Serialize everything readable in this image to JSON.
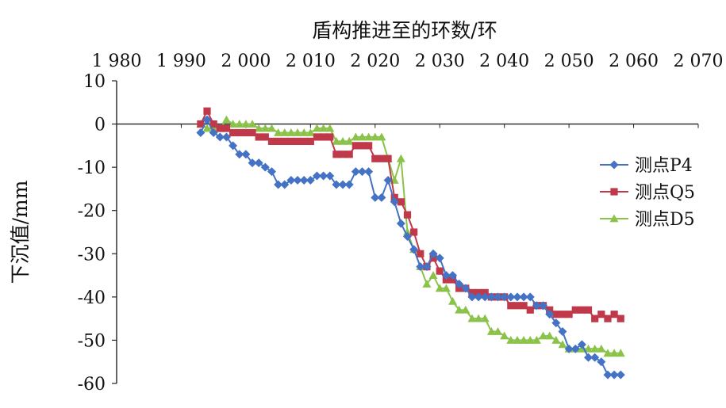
{
  "chart_data": {
    "type": "line",
    "title": "",
    "xlabel": "盾构推进至的环数/环",
    "ylabel": "下沉值/mm",
    "x_axis_position": "top",
    "xlim": [
      1980,
      2070
    ],
    "ylim": [
      -60,
      10
    ],
    "x_ticks": [
      1980,
      1990,
      2000,
      2010,
      2020,
      2030,
      2040,
      2050,
      2060,
      2070
    ],
    "x_tick_labels": [
      "1 980",
      "1 990",
      "2 000",
      "2 010",
      "2 020",
      "2 030",
      "2 040",
      "2 050",
      "2 060",
      "2 070"
    ],
    "y_ticks": [
      10,
      0,
      -10,
      -20,
      -30,
      -40,
      -50,
      -60
    ],
    "y_tick_labels": [
      "10",
      "0",
      "-10",
      "-20",
      "-30",
      "-40",
      "-50",
      "-60"
    ],
    "grid": false,
    "legend_position": "right",
    "series": [
      {
        "name": "测点P4",
        "color": "#4472C4",
        "marker": "diamond",
        "x": [
          1993,
          1994,
          1995,
          1996,
          1997,
          1998,
          1999,
          2000,
          2001,
          2002,
          2003,
          2004,
          2005,
          2006,
          2007,
          2008,
          2009,
          2010,
          2011,
          2012,
          2013,
          2014,
          2015,
          2016,
          2017,
          2018,
          2019,
          2020,
          2021,
          2022,
          2023,
          2024,
          2025,
          2026,
          2027,
          2028,
          2029,
          2030,
          2031,
          2032,
          2033,
          2034,
          2035,
          2036,
          2037,
          2038,
          2039,
          2040,
          2041,
          2042,
          2043,
          2044,
          2045,
          2046,
          2047,
          2048,
          2049,
          2050,
          2051,
          2052,
          2053,
          2054,
          2055,
          2056,
          2057,
          2058
        ],
        "values": [
          -2,
          1,
          -2,
          -3,
          -3,
          -5,
          -7,
          -7,
          -9,
          -9,
          -10,
          -11,
          -14,
          -14,
          -13,
          -13,
          -13,
          -13,
          -12,
          -12,
          -12,
          -14,
          -14,
          -14,
          -11,
          -11,
          -11,
          -17,
          -17,
          -13,
          -18,
          -23,
          -26,
          -29,
          -33,
          -33,
          -30,
          -31,
          -35,
          -35,
          -37,
          -38,
          -40,
          -40,
          -40,
          -40,
          -40,
          -40,
          -40,
          -40,
          -40,
          -40,
          -42,
          -42,
          -44,
          -46,
          -48,
          -52,
          -52,
          -51,
          -54,
          -54,
          -55,
          -58,
          -58,
          -58
        ]
      },
      {
        "name": "测点Q5",
        "color": "#C0394B",
        "marker": "square",
        "x": [
          1993,
          1994,
          1995,
          1996,
          1997,
          1998,
          1999,
          2000,
          2001,
          2002,
          2003,
          2004,
          2005,
          2006,
          2007,
          2008,
          2009,
          2010,
          2011,
          2012,
          2013,
          2014,
          2015,
          2016,
          2017,
          2018,
          2019,
          2020,
          2021,
          2022,
          2023,
          2024,
          2025,
          2026,
          2027,
          2028,
          2029,
          2030,
          2031,
          2032,
          2033,
          2034,
          2035,
          2036,
          2037,
          2038,
          2039,
          2040,
          2041,
          2042,
          2043,
          2044,
          2045,
          2046,
          2047,
          2048,
          2049,
          2050,
          2051,
          2052,
          2053,
          2054,
          2055,
          2056,
          2057,
          2058
        ],
        "values": [
          0,
          3,
          0,
          -1,
          -1,
          -2,
          -2,
          -2,
          -2,
          -3,
          -3,
          -4,
          -4,
          -4,
          -4,
          -4,
          -4,
          -4,
          -3,
          -3,
          -3,
          -7,
          -7,
          -7,
          -5,
          -5,
          -5,
          -8,
          -8,
          -8,
          -17,
          -18,
          -21,
          -25,
          -30,
          -33,
          -31,
          -34,
          -36,
          -36,
          -38,
          -38,
          -39,
          -39,
          -39,
          -40,
          -40,
          -40,
          -42,
          -42,
          -42,
          -43,
          -42,
          -42,
          -43,
          -44,
          -44,
          -44,
          -43,
          -43,
          -43,
          -45,
          -44,
          -45,
          -44,
          -45
        ]
      },
      {
        "name": "测点D5",
        "color": "#8BC34A",
        "marker": "triangle",
        "x": [
          1993,
          1994,
          1995,
          1996,
          1997,
          1998,
          1999,
          2000,
          2001,
          2002,
          2003,
          2004,
          2005,
          2006,
          2007,
          2008,
          2009,
          2010,
          2011,
          2012,
          2013,
          2014,
          2015,
          2016,
          2017,
          2018,
          2019,
          2020,
          2021,
          2022,
          2023,
          2024,
          2025,
          2026,
          2027,
          2028,
          2029,
          2030,
          2031,
          2032,
          2033,
          2034,
          2035,
          2036,
          2037,
          2038,
          2039,
          2040,
          2041,
          2042,
          2043,
          2044,
          2045,
          2046,
          2047,
          2048,
          2049,
          2050,
          2051,
          2052,
          2053,
          2054,
          2055,
          2056,
          2057,
          2058
        ],
        "values": [
          0,
          -1,
          -1,
          -1,
          1,
          0,
          0,
          0,
          0,
          -1,
          -1,
          -1,
          -2,
          -2,
          -2,
          -2,
          -2,
          -2,
          -1,
          -1,
          -1,
          -4,
          -4,
          -4,
          -3,
          -3,
          -3,
          -3,
          -3,
          -8,
          -13,
          -8,
          -25,
          -29,
          -33,
          -37,
          -35,
          -38,
          -38,
          -41,
          -43,
          -43,
          -45,
          -45,
          -45,
          -48,
          -48,
          -49,
          -50,
          -50,
          -50,
          -50,
          -50,
          -49,
          -49,
          -50,
          -51,
          -52,
          -52,
          -52,
          -52,
          -52,
          -52,
          -53,
          -53,
          -53
        ]
      }
    ]
  }
}
